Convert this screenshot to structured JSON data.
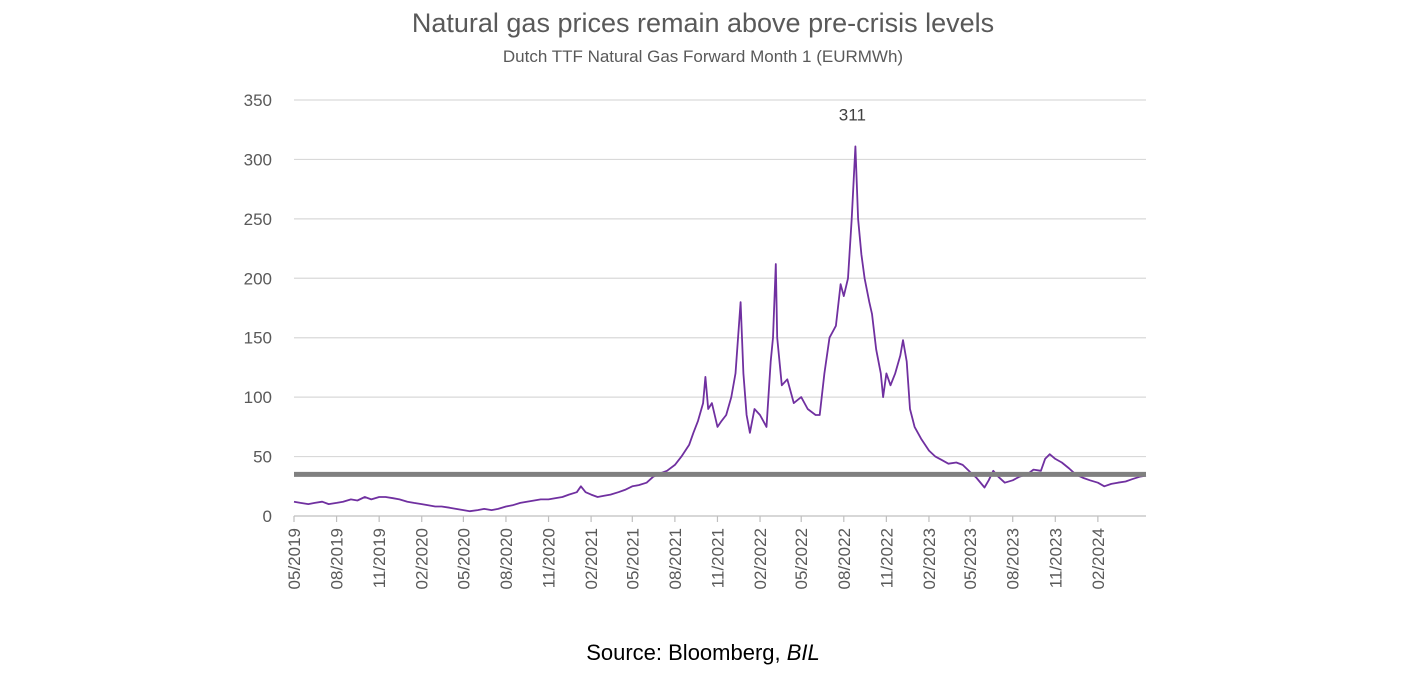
{
  "chart_data": {
    "type": "line",
    "title": "Natural gas prices remain above pre-crisis levels",
    "subtitle": "Dutch TTF Natural Gas Forward Month 1 (EURMWh)",
    "source_prefix": "Source: Bloomberg, ",
    "source_italic": "BIL",
    "ylim": [
      0,
      350
    ],
    "yticks": [
      0,
      50,
      100,
      150,
      200,
      250,
      300,
      350
    ],
    "grid": true,
    "legend": "none",
    "x_tick_labels": [
      "05/2019",
      "08/2019",
      "11/2019",
      "02/2020",
      "05/2020",
      "08/2020",
      "11/2020",
      "02/2021",
      "05/2021",
      "08/2021",
      "11/2021",
      "02/2022",
      "05/2022",
      "08/2022",
      "11/2022",
      "02/2023",
      "05/2023",
      "08/2023",
      "11/2023",
      "02/2024"
    ],
    "x_range": [
      "2019-05-01",
      "2024-05-15"
    ],
    "reference_line": {
      "value": 35,
      "color": "#808080"
    },
    "annotation": {
      "text": "311",
      "x": "2022-08-26",
      "y": 311
    },
    "series": [
      {
        "color": "#7030A0",
        "points": [
          [
            "2019-05-01",
            12
          ],
          [
            "2019-05-15",
            11
          ],
          [
            "2019-06-01",
            10
          ],
          [
            "2019-06-15",
            11
          ],
          [
            "2019-07-01",
            12
          ],
          [
            "2019-07-15",
            10
          ],
          [
            "2019-08-01",
            11
          ],
          [
            "2019-08-15",
            12
          ],
          [
            "2019-09-01",
            14
          ],
          [
            "2019-09-15",
            13
          ],
          [
            "2019-10-01",
            16
          ],
          [
            "2019-10-15",
            14
          ],
          [
            "2019-11-01",
            16
          ],
          [
            "2019-11-15",
            16
          ],
          [
            "2019-12-01",
            15
          ],
          [
            "2019-12-15",
            14
          ],
          [
            "2020-01-01",
            12
          ],
          [
            "2020-01-15",
            11
          ],
          [
            "2020-02-01",
            10
          ],
          [
            "2020-02-15",
            9
          ],
          [
            "2020-03-01",
            8
          ],
          [
            "2020-03-15",
            8
          ],
          [
            "2020-04-01",
            7
          ],
          [
            "2020-04-15",
            6
          ],
          [
            "2020-05-01",
            5
          ],
          [
            "2020-05-15",
            4
          ],
          [
            "2020-06-01",
            5
          ],
          [
            "2020-06-15",
            6
          ],
          [
            "2020-07-01",
            5
          ],
          [
            "2020-07-15",
            6
          ],
          [
            "2020-08-01",
            8
          ],
          [
            "2020-08-15",
            9
          ],
          [
            "2020-09-01",
            11
          ],
          [
            "2020-09-15",
            12
          ],
          [
            "2020-10-01",
            13
          ],
          [
            "2020-10-15",
            14
          ],
          [
            "2020-11-01",
            14
          ],
          [
            "2020-11-15",
            15
          ],
          [
            "2020-12-01",
            16
          ],
          [
            "2020-12-15",
            18
          ],
          [
            "2021-01-01",
            20
          ],
          [
            "2021-01-10",
            25
          ],
          [
            "2021-01-20",
            20
          ],
          [
            "2021-02-01",
            18
          ],
          [
            "2021-02-15",
            16
          ],
          [
            "2021-03-01",
            17
          ],
          [
            "2021-03-15",
            18
          ],
          [
            "2021-04-01",
            20
          ],
          [
            "2021-04-15",
            22
          ],
          [
            "2021-05-01",
            25
          ],
          [
            "2021-05-15",
            26
          ],
          [
            "2021-06-01",
            28
          ],
          [
            "2021-06-15",
            33
          ],
          [
            "2021-07-01",
            36
          ],
          [
            "2021-07-15",
            38
          ],
          [
            "2021-08-01",
            43
          ],
          [
            "2021-08-15",
            50
          ],
          [
            "2021-09-01",
            60
          ],
          [
            "2021-09-10",
            70
          ],
          [
            "2021-09-20",
            80
          ],
          [
            "2021-10-01",
            95
          ],
          [
            "2021-10-06",
            117
          ],
          [
            "2021-10-12",
            90
          ],
          [
            "2021-10-20",
            95
          ],
          [
            "2021-11-01",
            75
          ],
          [
            "2021-11-10",
            80
          ],
          [
            "2021-11-20",
            85
          ],
          [
            "2021-12-01",
            100
          ],
          [
            "2021-12-10",
            120
          ],
          [
            "2021-12-21",
            180
          ],
          [
            "2021-12-27",
            120
          ],
          [
            "2022-01-03",
            85
          ],
          [
            "2022-01-10",
            70
          ],
          [
            "2022-01-20",
            90
          ],
          [
            "2022-02-01",
            85
          ],
          [
            "2022-02-15",
            75
          ],
          [
            "2022-02-24",
            130
          ],
          [
            "2022-03-01",
            150
          ],
          [
            "2022-03-07",
            212
          ],
          [
            "2022-03-10",
            150
          ],
          [
            "2022-03-20",
            110
          ],
          [
            "2022-04-01",
            115
          ],
          [
            "2022-04-15",
            95
          ],
          [
            "2022-05-01",
            100
          ],
          [
            "2022-05-15",
            90
          ],
          [
            "2022-06-01",
            85
          ],
          [
            "2022-06-10",
            85
          ],
          [
            "2022-06-20",
            120
          ],
          [
            "2022-07-01",
            150
          ],
          [
            "2022-07-15",
            160
          ],
          [
            "2022-07-25",
            195
          ],
          [
            "2022-08-01",
            185
          ],
          [
            "2022-08-10",
            200
          ],
          [
            "2022-08-18",
            250
          ],
          [
            "2022-08-26",
            311
          ],
          [
            "2022-09-01",
            250
          ],
          [
            "2022-09-08",
            220
          ],
          [
            "2022-09-15",
            200
          ],
          [
            "2022-09-25",
            180
          ],
          [
            "2022-10-01",
            170
          ],
          [
            "2022-10-10",
            140
          ],
          [
            "2022-10-20",
            120
          ],
          [
            "2022-10-25",
            100
          ],
          [
            "2022-11-01",
            120
          ],
          [
            "2022-11-10",
            110
          ],
          [
            "2022-11-20",
            120
          ],
          [
            "2022-12-01",
            135
          ],
          [
            "2022-12-07",
            148
          ],
          [
            "2022-12-15",
            130
          ],
          [
            "2022-12-22",
            90
          ],
          [
            "2023-01-01",
            75
          ],
          [
            "2023-01-15",
            65
          ],
          [
            "2023-02-01",
            55
          ],
          [
            "2023-02-15",
            50
          ],
          [
            "2023-03-01",
            47
          ],
          [
            "2023-03-15",
            44
          ],
          [
            "2023-04-01",
            45
          ],
          [
            "2023-04-15",
            43
          ],
          [
            "2023-05-01",
            37
          ],
          [
            "2023-05-15",
            32
          ],
          [
            "2023-06-01",
            24
          ],
          [
            "2023-06-10",
            30
          ],
          [
            "2023-06-20",
            38
          ],
          [
            "2023-07-01",
            33
          ],
          [
            "2023-07-15",
            28
          ],
          [
            "2023-08-01",
            30
          ],
          [
            "2023-08-15",
            33
          ],
          [
            "2023-09-01",
            35
          ],
          [
            "2023-09-15",
            39
          ],
          [
            "2023-10-01",
            38
          ],
          [
            "2023-10-10",
            48
          ],
          [
            "2023-10-20",
            52
          ],
          [
            "2023-11-01",
            48
          ],
          [
            "2023-11-15",
            45
          ],
          [
            "2023-12-01",
            40
          ],
          [
            "2023-12-15",
            35
          ],
          [
            "2024-01-01",
            32
          ],
          [
            "2024-01-15",
            30
          ],
          [
            "2024-02-01",
            28
          ],
          [
            "2024-02-15",
            25
          ],
          [
            "2024-03-01",
            27
          ],
          [
            "2024-03-15",
            28
          ],
          [
            "2024-04-01",
            29
          ],
          [
            "2024-04-15",
            31
          ],
          [
            "2024-05-01",
            33
          ],
          [
            "2024-05-15",
            34
          ]
        ]
      }
    ]
  }
}
